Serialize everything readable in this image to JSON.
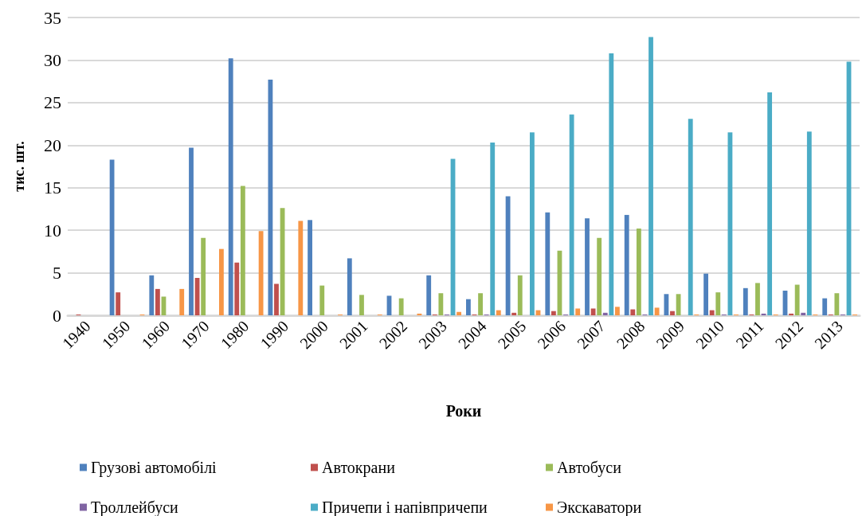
{
  "chart_data": {
    "type": "bar",
    "xlabel": "Роки",
    "ylabel": "тис. шт.",
    "categories": [
      "1940",
      "1950",
      "1960",
      "1970",
      "1980",
      "1990",
      "2000",
      "2001",
      "2002",
      "2003",
      "2004",
      "2005",
      "2006",
      "2007",
      "2008",
      "2009",
      "2010",
      "2011",
      "2012",
      "2013"
    ],
    "series": [
      {
        "name": "Грузові автомобілі",
        "color": "#4f81bd",
        "values": [
          null,
          18.3,
          4.7,
          19.7,
          30.2,
          27.7,
          11.2,
          6.7,
          2.3,
          4.7,
          1.9,
          14.0,
          12.1,
          11.4,
          11.8,
          2.5,
          4.9,
          3.2,
          2.9,
          2.0
        ]
      },
      {
        "name": "Автокрани",
        "color": "#c0504d",
        "values": [
          0.1,
          2.7,
          3.1,
          4.4,
          6.2,
          3.7,
          null,
          null,
          null,
          0.1,
          0.1,
          0.3,
          0.5,
          0.8,
          0.7,
          0.5,
          0.6,
          0.1,
          0.2,
          0.1
        ]
      },
      {
        "name": "Автобуси",
        "color": "#9bbb59",
        "values": [
          null,
          null,
          2.2,
          9.1,
          15.2,
          12.6,
          3.5,
          2.4,
          2.0,
          2.6,
          2.6,
          4.7,
          7.6,
          9.1,
          10.2,
          2.5,
          2.7,
          3.8,
          3.6,
          2.6
        ]
      },
      {
        "name": "Троллейбуси",
        "color": "#8064a2",
        "values": [
          null,
          null,
          null,
          null,
          null,
          null,
          null,
          null,
          null,
          0.1,
          0.1,
          null,
          0.1,
          0.3,
          0.1,
          null,
          0.1,
          0.2,
          0.3,
          0.1
        ]
      },
      {
        "name": "Причепи і напівпричепи",
        "color": "#4bacc6",
        "values": [
          null,
          null,
          null,
          null,
          null,
          null,
          null,
          null,
          null,
          18.4,
          20.3,
          21.5,
          23.6,
          30.8,
          32.7,
          23.1,
          21.5,
          26.2,
          21.6,
          29.8
        ]
      },
      {
        "name": "Экскаватори",
        "color": "#f79646",
        "values": [
          null,
          0.1,
          3.1,
          7.8,
          9.9,
          11.1,
          0.1,
          0.1,
          0.2,
          0.4,
          0.6,
          0.6,
          0.8,
          1.0,
          0.9,
          0.1,
          0.1,
          0.1,
          0.1,
          0.1
        ]
      }
    ],
    "ylim": [
      0,
      35
    ],
    "yticks": [
      0,
      5,
      10,
      15,
      20,
      25,
      30,
      35
    ],
    "grid": "y",
    "legend": "bottom"
  }
}
